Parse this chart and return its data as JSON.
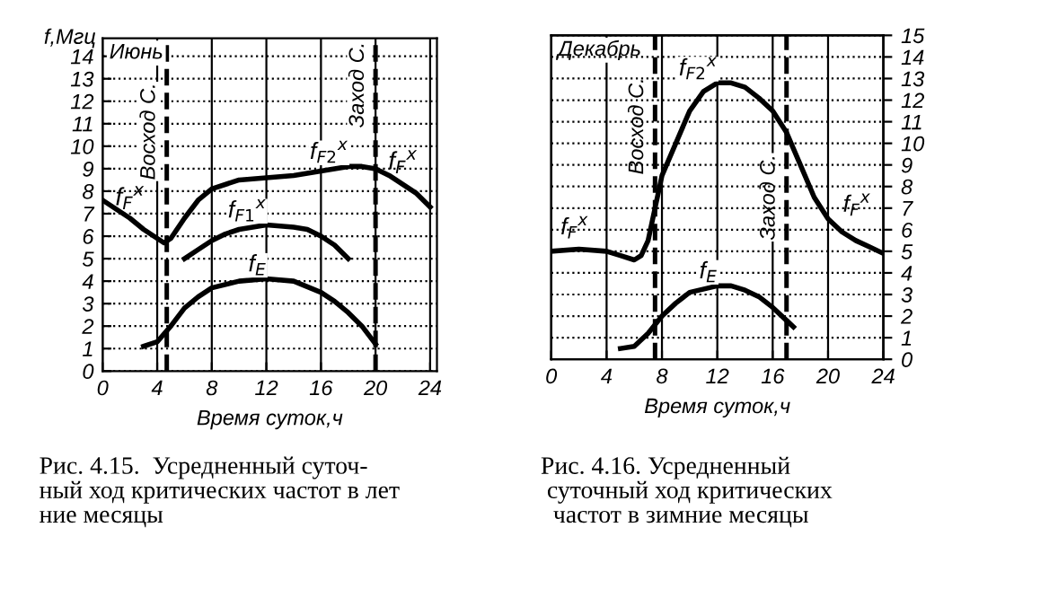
{
  "chart_data": [
    {
      "type": "line",
      "ylabel": "f,Мгц",
      "xlabel": "Время суток,ч",
      "annotations": [
        "Июнь",
        {
          "text": "f$_{F}$$^{x}$",
          "x": 2,
          "y": 6.7
        },
        {
          "text": "f$_{F}$$^{x}$",
          "x": 22,
          "y": 8.3
        },
        "Рис. 4.15.  Усредненный суточ-\nный ход критических частот в лет\nние месяцы"
      ],
      "series": [
        {
          "name": "f$_{F2}$$^{x}$",
          "color": "#000000",
          "x": [
            0,
            1,
            2,
            3,
            4,
            4.5,
            5,
            6,
            7,
            8,
            10,
            12,
            14,
            16,
            18,
            19,
            20,
            21,
            22,
            23,
            24
          ],
          "values": [
            7.6,
            7.2,
            6.8,
            6.3,
            5.9,
            5.7,
            5.9,
            6.8,
            7.6,
            8.1,
            8.5,
            8.6,
            8.7,
            8.9,
            9.1,
            9.1,
            9.0,
            8.7,
            8.3,
            7.9,
            7.3
          ]
        },
        {
          "name": "f$_{F1}$$^{x}$",
          "color": "#000000",
          "x": [
            6,
            7,
            8,
            9,
            10,
            12,
            14,
            15,
            16,
            17,
            18
          ],
          "values": [
            5.0,
            5.4,
            5.8,
            6.1,
            6.3,
            6.5,
            6.4,
            6.3,
            6.0,
            5.6,
            5.0
          ]
        },
        {
          "name": "f$_{E}$",
          "color": "#000000",
          "x": [
            3,
            4,
            5,
            6,
            7,
            8,
            10,
            12,
            14,
            16,
            17,
            18,
            19,
            20
          ],
          "values": [
            1.1,
            1.3,
            2.0,
            2.8,
            3.3,
            3.7,
            4.0,
            4.1,
            4.0,
            3.5,
            3.1,
            2.6,
            2.0,
            1.2
          ]
        }
      ],
      "ref_lines": [
        {
          "axis": "x",
          "value": 4.7,
          "label": "Восход С.",
          "color": "#000000",
          "line_style": "dashed"
        },
        {
          "axis": "x",
          "value": 20,
          "label": "Заход С.",
          "color": "#000000",
          "line_style": "dashed"
        }
      ],
      "xlim": [
        0,
        24.5
      ],
      "xticks": [
        0,
        4,
        8,
        12,
        16,
        20,
        24
      ],
      "ylim": [
        0,
        14.8
      ],
      "yticks": [
        0,
        1,
        2,
        3,
        4,
        5,
        6,
        7,
        8,
        9,
        10,
        11,
        12,
        13,
        14
      ],
      "grid": true,
      "line_style": "solid"
    },
    {
      "type": "line",
      "xlabel": "Время суток,ч",
      "annotations": [
        "Декабрь",
        "f$_{F}$$^{x}$",
        "f$_{F}$$^{x}$",
        "Рис. 4.16. Усредненный\n суточный ход критических\n  частот в зимние месяцы"
      ],
      "series": [
        {
          "name": "f$_{F2}$$^{x}$",
          "color": "#000000",
          "axis": "y2",
          "x": [
            0,
            2,
            4,
            5,
            6,
            6.5,
            7,
            7.5,
            8,
            9,
            10,
            11,
            12,
            13,
            14,
            15,
            16,
            17,
            18,
            19,
            20,
            21,
            22,
            23,
            24
          ],
          "values": [
            5.0,
            5.1,
            5.0,
            4.8,
            4.6,
            4.8,
            5.5,
            7.0,
            8.5,
            10.0,
            11.5,
            12.4,
            12.8,
            12.8,
            12.6,
            12.1,
            11.5,
            10.5,
            9.0,
            7.5,
            6.5,
            5.9,
            5.5,
            5.2,
            4.9
          ]
        },
        {
          "name": "f$_{E}$",
          "color": "#000000",
          "axis": "y2",
          "x": [
            5,
            6,
            7,
            8,
            9,
            10,
            12,
            13,
            14,
            15,
            16,
            17,
            17.5
          ],
          "values": [
            0.5,
            0.6,
            1.2,
            2.0,
            2.6,
            3.1,
            3.4,
            3.4,
            3.2,
            2.9,
            2.4,
            1.8,
            1.5
          ]
        }
      ],
      "ref_lines": [
        {
          "axis": "x",
          "value": 7.5,
          "label": "Восход С.",
          "color": "#000000",
          "line_style": "dashed"
        },
        {
          "axis": "x",
          "value": 17,
          "label": "Заход С.",
          "color": "#000000",
          "line_style": "dashed"
        }
      ],
      "xlim": [
        0,
        24
      ],
      "xticks": [
        0,
        4,
        8,
        12,
        16,
        20,
        24
      ],
      "y2lim": [
        0,
        15
      ],
      "y2ticks": [
        0,
        1,
        2,
        3,
        4,
        5,
        6,
        7,
        8,
        9,
        10,
        11,
        12,
        13,
        14,
        15
      ],
      "grid": true,
      "line_style": "solid"
    }
  ]
}
